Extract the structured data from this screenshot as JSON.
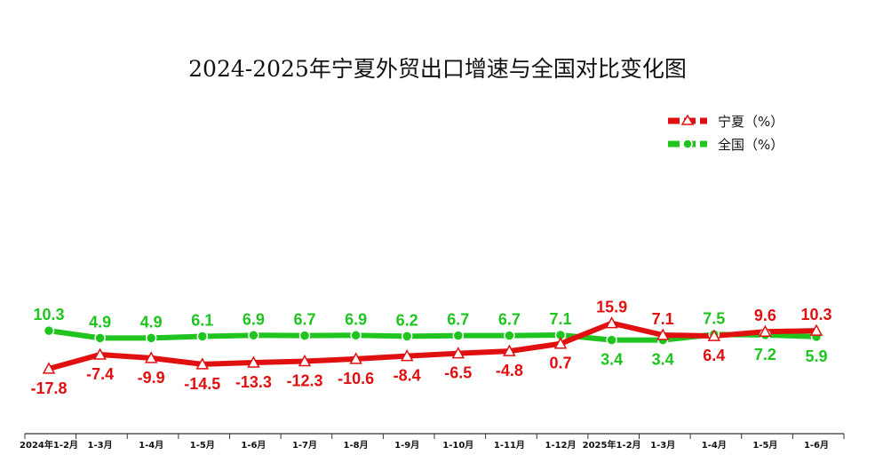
{
  "chart_data": {
    "type": "line",
    "title": "2024-2025年宁夏外贸出口增速与全国对比变化图",
    "xlabel": "",
    "ylabel": "",
    "categories": [
      "2024年1-2月",
      "1-3月",
      "1-4月",
      "1-5月",
      "1-6月",
      "1-7月",
      "1-8月",
      "1-9月",
      "1-10月",
      "1-11月",
      "1-12月",
      "2025年1-2月",
      "1-3月",
      "1-4月",
      "1-5月",
      "1-6月"
    ],
    "series": [
      {
        "name": "宁夏（%）",
        "color": "#e01010",
        "marker": "triangle",
        "values": [
          -17.8,
          -7.4,
          -9.9,
          -14.5,
          -13.3,
          -12.3,
          -10.6,
          -8.4,
          -6.5,
          -4.8,
          0.7,
          15.9,
          7.1,
          6.4,
          9.6,
          10.3
        ]
      },
      {
        "name": "全国（%）",
        "color": "#1fc41f",
        "marker": "circle",
        "values": [
          10.3,
          4.9,
          4.9,
          6.1,
          6.9,
          6.7,
          6.9,
          6.2,
          6.7,
          6.7,
          7.1,
          3.4,
          3.4,
          7.5,
          7.2,
          5.9
        ]
      }
    ],
    "legend_position": "top-right",
    "grid": false
  }
}
